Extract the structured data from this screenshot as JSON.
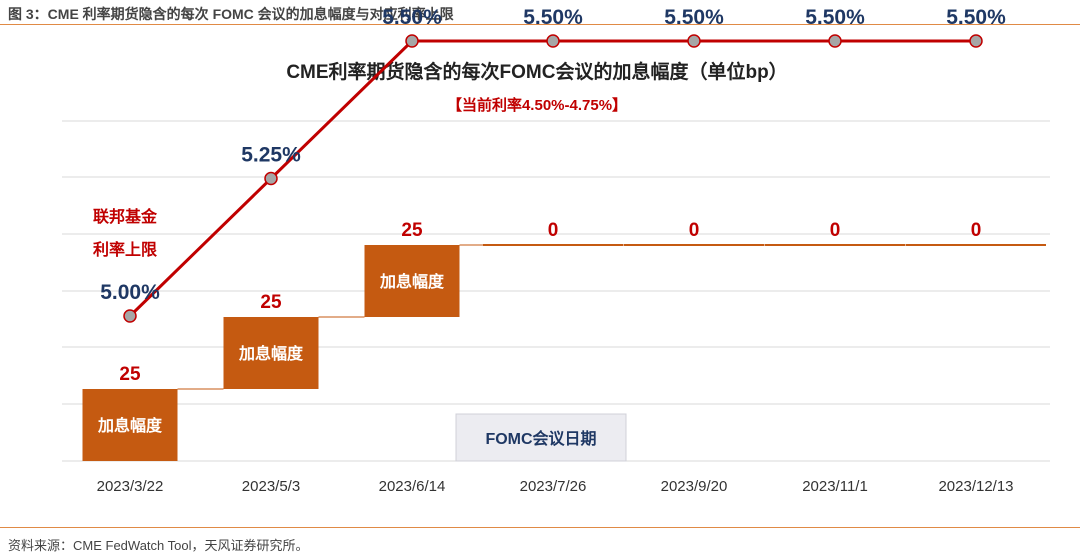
{
  "figure_caption": "图 3：CME 利率期货隐含的每次 FOMC 会议的加息幅度与对应利率上限",
  "source_note": "资料来源：CME FedWatch Tool，天风证券研究所。",
  "colors": {
    "line": "#c00000",
    "marker": "#a6a6a6",
    "box": "#c55a11",
    "grid": "#d9d9d9",
    "rule": "#e08a45"
  },
  "chart_data": {
    "type": "line",
    "title": "CME利率期货隐含的每次FOMC会议的加息幅度（单位bp）",
    "subtitle": "【当前利率4.50%-4.75%】",
    "categories": [
      "2023/3/22",
      "2023/5/3",
      "2023/6/14",
      "2023/7/26",
      "2023/9/20",
      "2023/11/1",
      "2023/12/13"
    ],
    "series": [
      {
        "name": "联邦基金利率上限",
        "values": [
          5.0,
          5.25,
          5.5,
          5.5,
          5.5,
          5.5,
          5.5
        ],
        "labels": [
          "5.00%",
          "5.25%",
          "5.50%",
          "5.50%",
          "5.50%",
          "5.50%",
          "5.50%"
        ]
      },
      {
        "name": "加息幅度",
        "values": [
          25,
          25,
          25,
          0,
          0,
          0,
          0
        ],
        "labels": [
          "25",
          "25",
          "25",
          "0",
          "0",
          "0",
          "0"
        ]
      }
    ],
    "series_label_line1": "联邦基金",
    "series_label_line2": "利率上限",
    "box_label": "加息幅度",
    "legend_box": "FOMC会议日期",
    "grid": true
  }
}
